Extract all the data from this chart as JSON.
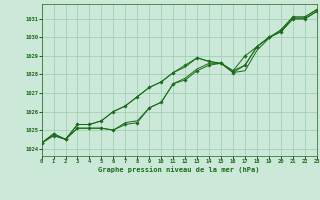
{
  "bg_color": "#cce8d8",
  "grid_color": "#99ccb0",
  "line_color": "#1a6b1a",
  "marker_color": "#1a6b1a",
  "xlabel": "Graphe pression niveau de la mer (hPa)",
  "xlim": [
    0,
    23
  ],
  "ylim": [
    1023.6,
    1031.8
  ],
  "xticks": [
    0,
    1,
    2,
    3,
    4,
    5,
    6,
    7,
    8,
    9,
    10,
    11,
    12,
    13,
    14,
    15,
    16,
    17,
    18,
    19,
    20,
    21,
    22,
    23
  ],
  "yticks": [
    1024,
    1025,
    1026,
    1027,
    1028,
    1029,
    1030,
    1031
  ],
  "series": [
    {
      "y": [
        1024.3,
        1024.7,
        1024.5,
        1025.1,
        1025.1,
        1025.1,
        1025.0,
        1025.3,
        1025.4,
        1026.2,
        1026.5,
        1027.5,
        1027.7,
        1028.2,
        1028.5,
        1028.6,
        1028.1,
        1028.5,
        1029.5,
        1030.0,
        1030.3,
        1031.0,
        1031.0,
        1031.4
      ],
      "marker": true
    },
    {
      "y": [
        1024.3,
        1024.7,
        1024.5,
        1025.1,
        1025.1,
        1025.1,
        1025.0,
        1025.4,
        1025.5,
        1026.2,
        1026.5,
        1027.5,
        1027.8,
        1028.3,
        1028.6,
        1028.6,
        1028.2,
        1028.5,
        1029.5,
        1030.0,
        1030.3,
        1031.0,
        1031.0,
        1031.4
      ],
      "marker": false
    },
    {
      "y": [
        1024.3,
        1024.8,
        1024.5,
        1025.3,
        1025.3,
        1025.5,
        1026.0,
        1026.3,
        1026.8,
        1027.3,
        1027.6,
        1028.1,
        1028.4,
        1028.9,
        1028.7,
        1028.6,
        1028.1,
        1028.2,
        1029.3,
        1029.95,
        1030.4,
        1031.1,
        1031.1,
        1031.5
      ],
      "marker": false
    },
    {
      "y": [
        1024.3,
        1024.8,
        1024.5,
        1025.3,
        1025.3,
        1025.5,
        1026.0,
        1026.3,
        1026.8,
        1027.3,
        1027.6,
        1028.1,
        1028.5,
        1028.9,
        1028.7,
        1028.6,
        1028.2,
        1029.0,
        1029.5,
        1030.0,
        1030.4,
        1031.1,
        1031.1,
        1031.5
      ],
      "marker": true
    }
  ]
}
